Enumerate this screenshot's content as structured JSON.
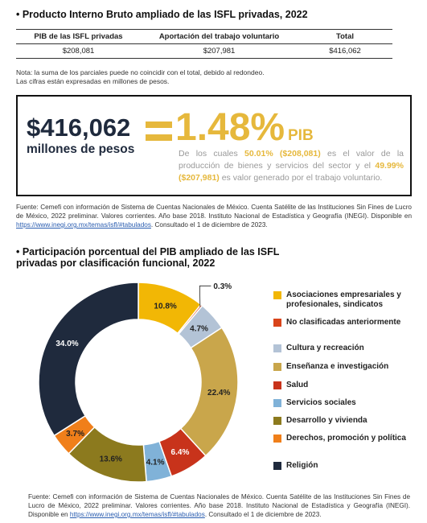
{
  "section1": {
    "title": "• Producto Interno Bruto ampliado de las ISFL privadas, 2022"
  },
  "table": {
    "header": [
      "PIB de las ISFL privadas",
      "Aportación del trabajo voluntario",
      "Total"
    ],
    "rows": [
      [
        "$208,081",
        "$207,981",
        "$416,062"
      ]
    ]
  },
  "notes": [
    "Nota: la suma de los parciales puede no coincidir con el total, debido al redondeo.",
    "Las cifras están expresadas en millones de pesos."
  ],
  "highlight": {
    "total": "$416,062",
    "unit": "millones de pesos",
    "percent": "1.48%",
    "pib": "PIB",
    "desc": [
      "De los cuales ",
      "50.01% ($208,081)",
      " es el valor de la producción de bienes y servicios del sector y el ",
      "49.99% ($207,981)",
      " es valor generado por el trabajo voluntario."
    ]
  },
  "source1": {
    "before": "Fuente: Cemefi con información de Sistema de Cuentas Nacionales de México. Cuenta Satélite de las Instituciones Sin Fines de Lucro de México, 2022 preliminar. Valores corrientes. Año base 2018. Instituto Nacional de Estadística y Geografía (INEGI). Disponible en ",
    "link": "https://www.inegi.org.mx/temas/isfl/#tabulados",
    "after": ". Consultado el 1 de diciembre de 2023."
  },
  "chart_data": {
    "type": "pie",
    "title": "• Participación porcentual del PIB ampliado de las ISFL privadas por clasificación funcional, 2022",
    "categories": [
      "Asociaciones empresariales y profesionales, sindicatos",
      "No clasificadas anteriormente",
      "Cultura y recreación",
      "Enseñanza e investigación",
      "Salud",
      "Servicios sociales",
      "Desarrollo y vivienda",
      "Derechos, promoción y política",
      "Religión"
    ],
    "values": [
      10.8,
      0.3,
      4.7,
      22.4,
      6.4,
      4.1,
      13.6,
      3.7,
      34.0
    ],
    "value_labels": [
      "10.8%",
      "0.3%",
      "4.7%",
      "22.4%",
      "6.4%",
      "4.1%",
      "13.6%",
      "3.7%",
      "34.0%"
    ],
    "colors": [
      "#f2b705",
      "#d9441a",
      "#b3c3d6",
      "#c9a64b",
      "#c8331b",
      "#80b2d8",
      "#8c7a1e",
      "#f07f1a",
      "#1f2a3d"
    ]
  },
  "source2": {
    "before": "Fuente: Cemefi con información de Sistema de Cuentas Nacionales de México. Cuenta Satélite de las Instituciones Sin Fines de Lucro de México, 2022 preliminar. Valores corrientes. Año base 2018. Instituto Nacional de Estadística y Geografía (INEGI). Disponible en ",
    "link": "https://www.inegi.org.mx/temas/isfl/#tabulados",
    "after": ". Consultado el 1 de diciembre de 2023."
  }
}
